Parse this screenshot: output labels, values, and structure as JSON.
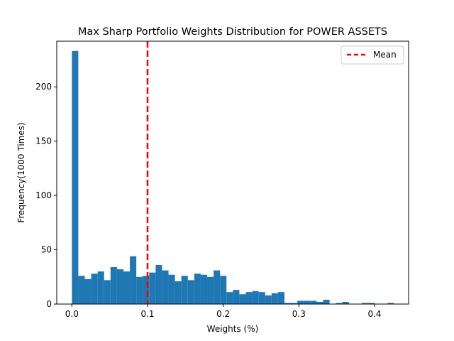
{
  "chart_data": {
    "type": "bar",
    "title": "Max Sharp Portfolio Weights Distribution for POWER ASSETS",
    "xlabel": "Weights (%)",
    "ylabel": "Frequency(1000 Times)",
    "xlim": [
      -0.02,
      0.445
    ],
    "ylim": [
      0,
      242
    ],
    "xticks": [
      0.0,
      0.1,
      0.2,
      0.3,
      0.4
    ],
    "xtick_labels": [
      "0.0",
      "0.1",
      "0.2",
      "0.3",
      "0.4"
    ],
    "yticks": [
      0,
      50,
      100,
      150,
      200
    ],
    "ytick_labels": [
      "0",
      "50",
      "100",
      "150",
      "200"
    ],
    "bin_start": 0.0,
    "bin_width": 0.008513,
    "values": [
      233,
      26,
      23,
      28,
      30,
      22,
      34,
      32,
      30,
      44,
      25,
      26,
      29,
      36,
      31,
      27,
      21,
      26,
      22,
      28,
      27,
      25,
      31,
      26,
      11,
      13,
      9,
      11,
      12,
      11,
      8,
      10,
      11,
      1,
      1,
      3,
      3,
      3,
      2,
      4,
      0,
      1,
      2,
      0,
      0,
      1,
      1,
      0,
      0,
      1
    ],
    "bar_color": "#1f77b4",
    "mean_line": {
      "x": 0.1,
      "label": "Mean",
      "color": "#ff0000",
      "style": "dashed"
    },
    "legend": {
      "placement": "top-right",
      "entries": [
        "Mean"
      ]
    },
    "grid": false
  }
}
